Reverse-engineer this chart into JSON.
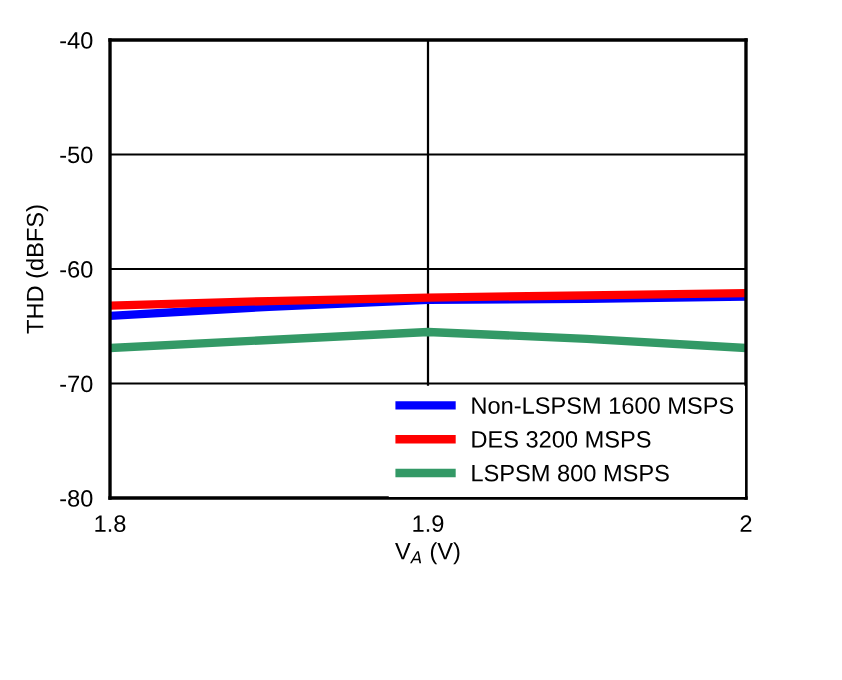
{
  "chart_data": {
    "type": "line",
    "xlabel": "V$_{A}$ (V)",
    "ylabel": "THD (dBFS)",
    "xlim": [
      1.8,
      2
    ],
    "xticks": [
      1.8,
      1.9,
      2
    ],
    "ylim": [
      -80,
      -40
    ],
    "yticks": [
      -80,
      -70,
      -60,
      -50,
      -40
    ],
    "grid": true,
    "legend": "bottom right",
    "x": [
      1.8,
      1.85,
      1.9,
      1.95,
      2
    ],
    "series": [
      {
        "name": "Non-LSPSM 1600 MSPS",
        "color": "#0000ff",
        "values": [
          -64.1,
          -63.3,
          -62.7,
          -62.6,
          -62.4
        ]
      },
      {
        "name": "DES 3200 MSPS",
        "color": "#ff0000",
        "values": [
          -63.2,
          -62.8,
          -62.5,
          -62.3,
          -62.1
        ]
      },
      {
        "name": "LSPSM 800 MSPS",
        "color": "#339966",
        "values": [
          -66.9,
          -66.2,
          -65.5,
          -66.1,
          -66.9
        ]
      }
    ]
  }
}
